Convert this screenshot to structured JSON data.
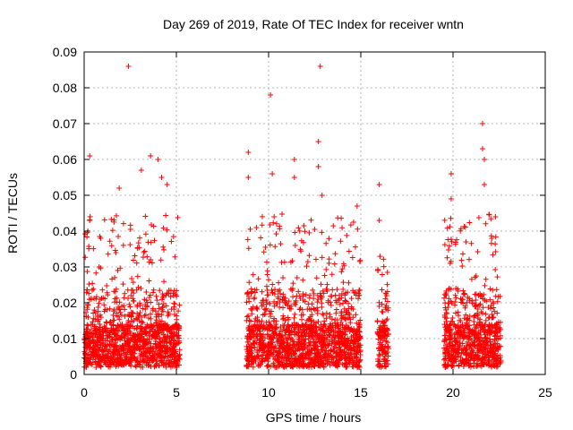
{
  "chart_data": {
    "type": "scatter",
    "title": "Day 269 of 2019, Rate Of TEC Index for receiver wntn",
    "xlabel": "GPS time / hours",
    "ylabel": "ROTI / TECUs",
    "xlim": [
      0,
      25
    ],
    "ylim": [
      0,
      0.09
    ],
    "grid": true,
    "marker": "+",
    "color": "#ff0000",
    "x_ticks": [
      {
        "value": 0,
        "label": "0"
      },
      {
        "value": 5,
        "label": "5"
      },
      {
        "value": 10,
        "label": "10"
      },
      {
        "value": 15,
        "label": "15"
      },
      {
        "value": 20,
        "label": "20"
      },
      {
        "value": 25,
        "label": "25"
      }
    ],
    "y_ticks": [
      {
        "value": 0,
        "label": "0"
      },
      {
        "value": 0.01,
        "label": "0.01"
      },
      {
        "value": 0.02,
        "label": "0.02"
      },
      {
        "value": 0.03,
        "label": "0.03"
      },
      {
        "value": 0.04,
        "label": "0.04"
      },
      {
        "value": 0.05,
        "label": "0.05"
      },
      {
        "value": 0.06,
        "label": "0.06"
      },
      {
        "value": 0.07,
        "label": "0.07"
      },
      {
        "value": 0.08,
        "label": "0.08"
      },
      {
        "value": 0.09,
        "label": "0.09"
      }
    ],
    "clusters": [
      {
        "x_range": [
          0.0,
          5.2
        ],
        "typical_max": 0.045,
        "base": 0.002
      },
      {
        "x_range": [
          8.8,
          15.0
        ],
        "typical_max": 0.045,
        "base": 0.002
      },
      {
        "x_range": [
          15.9,
          16.5
        ],
        "typical_max": 0.035,
        "base": 0.002
      },
      {
        "x_range": [
          19.5,
          22.6
        ],
        "typical_max": 0.045,
        "base": 0.002
      }
    ],
    "notable_points": [
      {
        "x": 0.3,
        "y": 0.061
      },
      {
        "x": 0.2,
        "y": 0.04
      },
      {
        "x": 0.3,
        "y": 0.043
      },
      {
        "x": 1.9,
        "y": 0.052
      },
      {
        "x": 2.4,
        "y": 0.086
      },
      {
        "x": 3.1,
        "y": 0.057
      },
      {
        "x": 3.6,
        "y": 0.061
      },
      {
        "x": 4.0,
        "y": 0.06
      },
      {
        "x": 4.2,
        "y": 0.055
      },
      {
        "x": 4.5,
        "y": 0.053
      },
      {
        "x": 8.9,
        "y": 0.062
      },
      {
        "x": 8.9,
        "y": 0.055
      },
      {
        "x": 10.1,
        "y": 0.078
      },
      {
        "x": 10.2,
        "y": 0.056
      },
      {
        "x": 10.3,
        "y": 0.044
      },
      {
        "x": 11.4,
        "y": 0.06
      },
      {
        "x": 11.4,
        "y": 0.055
      },
      {
        "x": 12.7,
        "y": 0.065
      },
      {
        "x": 12.8,
        "y": 0.086
      },
      {
        "x": 12.7,
        "y": 0.058
      },
      {
        "x": 12.9,
        "y": 0.05
      },
      {
        "x": 14.8,
        "y": 0.047
      },
      {
        "x": 16.0,
        "y": 0.053
      },
      {
        "x": 16.0,
        "y": 0.043
      },
      {
        "x": 19.9,
        "y": 0.056
      },
      {
        "x": 19.9,
        "y": 0.049
      },
      {
        "x": 20.7,
        "y": 0.037
      },
      {
        "x": 21.6,
        "y": 0.07
      },
      {
        "x": 21.6,
        "y": 0.063
      },
      {
        "x": 21.7,
        "y": 0.06
      },
      {
        "x": 21.7,
        "y": 0.053
      },
      {
        "x": 22.3,
        "y": 0.044
      },
      {
        "x": 22.1,
        "y": 0.038
      }
    ]
  }
}
